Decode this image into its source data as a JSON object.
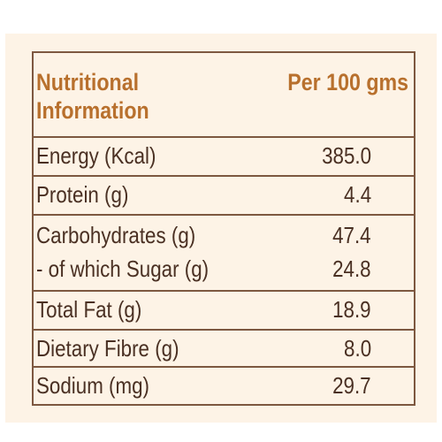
{
  "header": {
    "label_line1": "Nutritional",
    "label_line2": "Information",
    "per_label": "Per 100 gms"
  },
  "rows": [
    {
      "label": "Energy (Kcal)",
      "value": "385.0"
    },
    {
      "label": "Protein (g)",
      "value": "4.4"
    },
    {
      "label": "Carbohydrates (g)",
      "value": "47.4",
      "sub_label": "- of which Sugar (g)",
      "sub_value": "24.8"
    },
    {
      "label": "Total Fat (g)",
      "value": "18.9"
    },
    {
      "label": "Dietary Fibre (g)",
      "value": "8.0"
    },
    {
      "label": "Sodium (mg)",
      "value": "29.7"
    }
  ],
  "colors": {
    "panel_background": "#fdf3e6",
    "border": "#7d5840",
    "header_text": "#b8702d",
    "body_text": "#4a3023"
  }
}
